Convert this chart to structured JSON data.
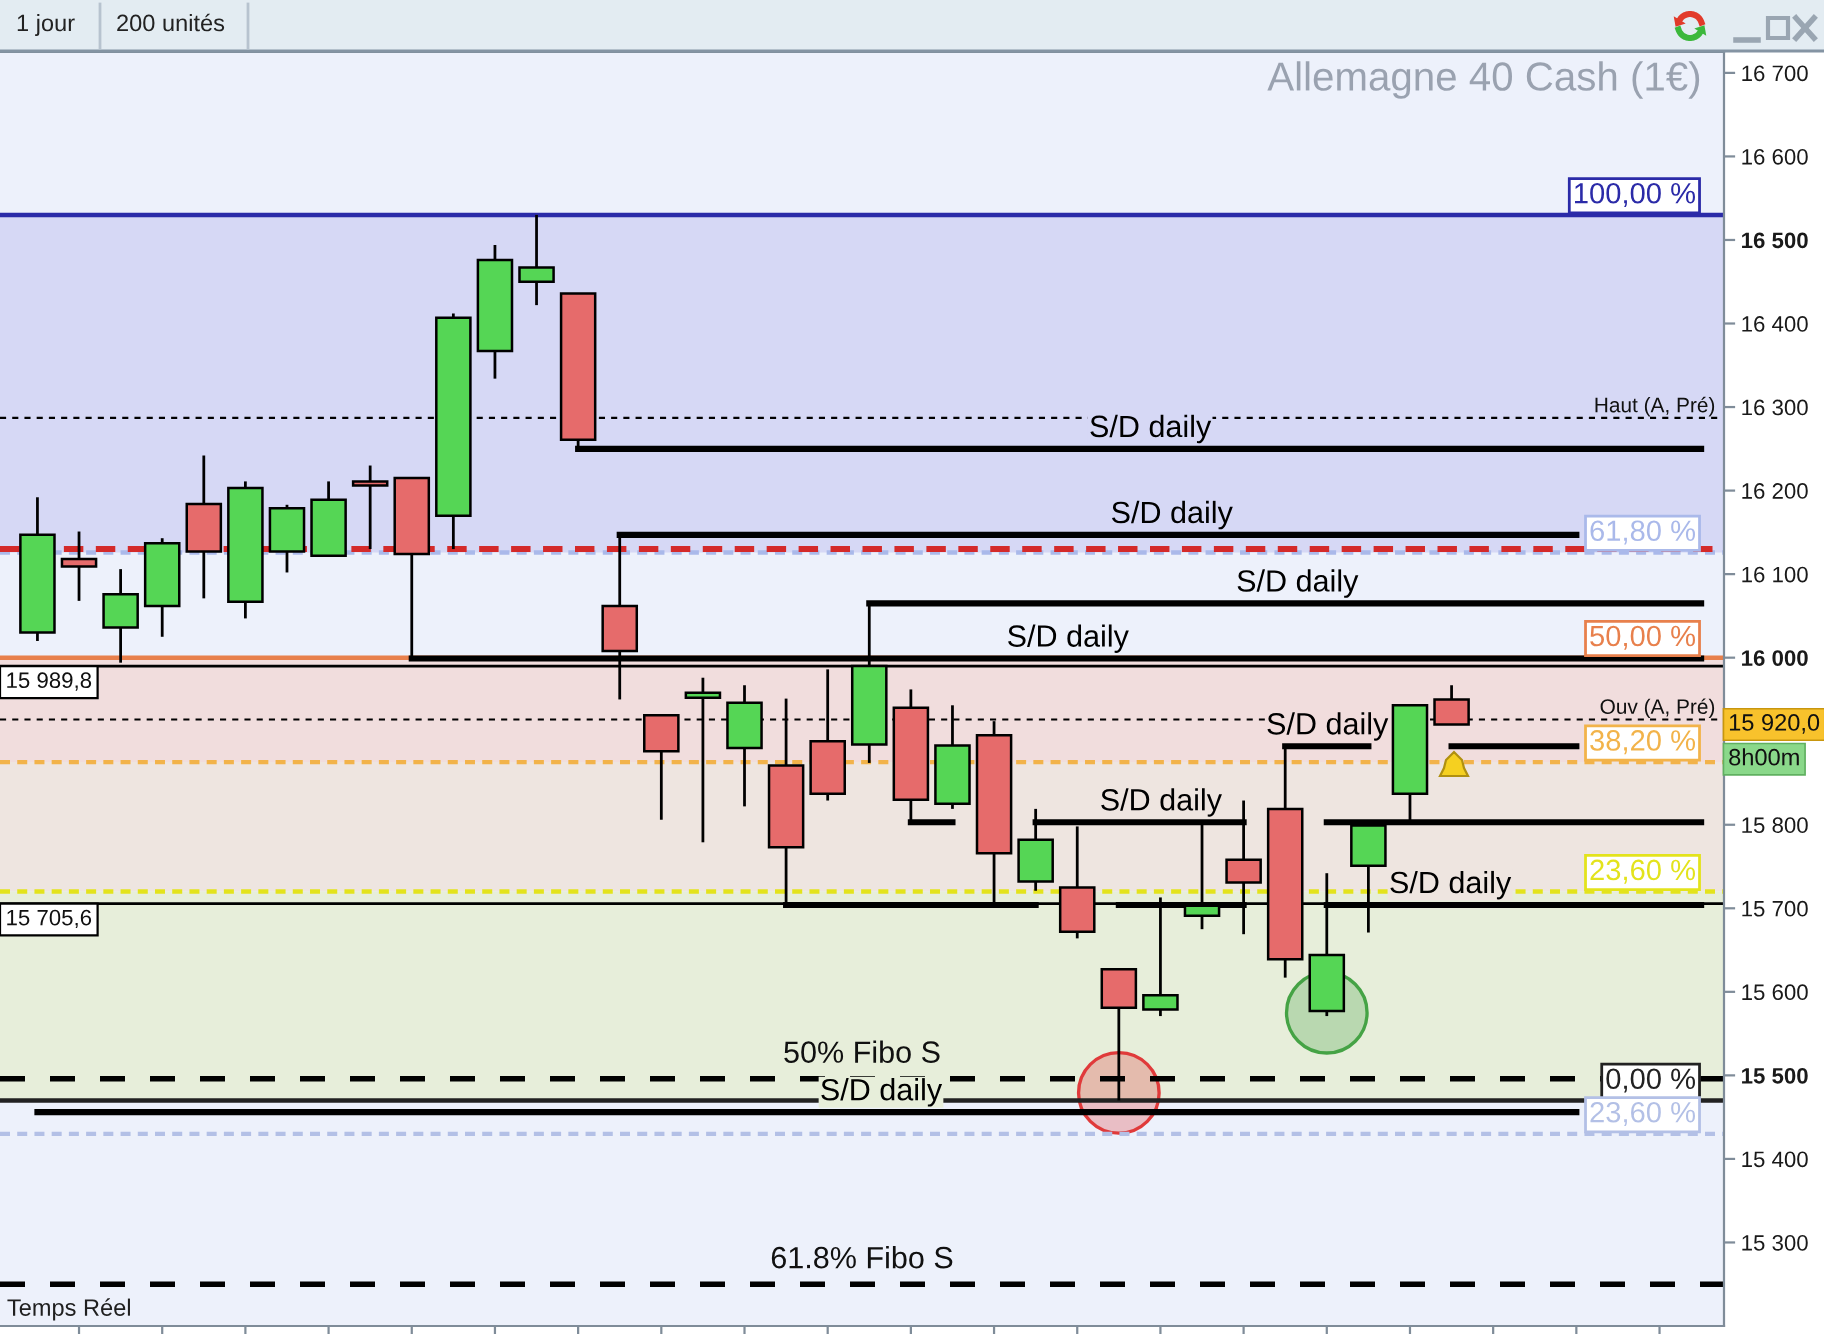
{
  "chart_data": {
    "type": "candlestick",
    "title": "Allemagne 40 Cash (1€)",
    "categories": [
      null,
      null,
      null,
      null,
      null,
      null,
      null,
      null,
      null,
      null,
      null,
      null,
      null,
      null,
      null,
      null,
      null,
      null,
      null,
      null,
      null,
      null,
      null,
      null,
      null,
      null,
      null,
      null,
      null,
      null,
      null,
      null,
      null,
      null,
      null,
      null,
      null,
      null,
      null,
      null,
      null
    ],
    "ohlc": [
      [
        16030,
        16192,
        16020,
        16147
      ],
      [
        16118,
        16151,
        16068,
        16109
      ],
      [
        16036,
        16106,
        15994,
        16076
      ],
      [
        16062,
        16143,
        16025,
        16137
      ],
      [
        16184,
        16242,
        16071,
        16127
      ],
      [
        16067,
        16211,
        16047,
        16203
      ],
      [
        16127,
        16183,
        16102,
        16179
      ],
      [
        16122,
        16211,
        16122,
        16189
      ],
      [
        16211,
        16230,
        16130,
        16206
      ],
      [
        16215,
        16215,
        15999,
        16124
      ],
      [
        16170,
        16412,
        16130,
        16407
      ],
      [
        16367,
        16494,
        16334,
        16476
      ],
      [
        16450,
        16530,
        16422,
        16467
      ],
      [
        16436,
        16436,
        16250,
        16261
      ],
      [
        16062,
        16147,
        15950,
        16008
      ],
      [
        15931,
        15931,
        15806,
        15888
      ],
      [
        15952,
        15976,
        15779,
        15958
      ],
      [
        15892,
        15967,
        15822,
        15946
      ],
      [
        15871,
        15951,
        15704,
        15773
      ],
      [
        15900,
        15986,
        15829,
        15837
      ],
      [
        15896,
        16065,
        15874,
        15990
      ],
      [
        15940,
        15962,
        15803,
        15830
      ],
      [
        15825,
        15943,
        15819,
        15895
      ],
      [
        15907,
        15924,
        15705,
        15766
      ],
      [
        15732,
        15819,
        15721,
        15782
      ],
      [
        15725,
        15798,
        15664,
        15672
      ],
      [
        15627,
        15627,
        15470,
        15581
      ],
      [
        15579,
        15713,
        15571,
        15596
      ],
      [
        15691,
        15800,
        15675,
        15703
      ],
      [
        15758,
        15829,
        15669,
        15731
      ],
      [
        15819,
        15894,
        15617,
        15639
      ],
      [
        15577,
        15742,
        15571,
        15644
      ],
      [
        15751,
        15804,
        15671,
        15799
      ],
      [
        15837,
        15944,
        15805,
        15943
      ],
      [
        15950,
        15967,
        15920,
        15920
      ],
      null,
      null,
      null,
      null,
      null,
      null
    ],
    "colors": [
      "#55d655",
      "#e66b6b",
      "#55d655",
      "#55d655",
      "#e66b6b",
      "#55d655",
      "#55d655",
      "#55d655",
      "#e66b6b",
      "#e66b6b",
      "#55d655",
      "#55d655",
      "#55d655",
      "#e66b6b",
      "#e66b6b",
      "#e66b6b",
      "#55d655",
      "#55d655",
      "#e66b6b",
      "#e66b6b",
      "#55d655",
      "#e66b6b",
      "#55d655",
      "#e66b6b",
      "#55d655",
      "#e66b6b",
      "#e66b6b",
      "#55d655",
      "#55d655",
      "#e66b6b",
      "#e66b6b",
      "#55d655",
      "#55d655",
      "#55d655",
      "#e66b6b",
      null,
      null,
      null,
      null,
      null,
      null
    ],
    "ylim": [
      15200,
      16725
    ],
    "yticks": [
      {
        "value": 15300,
        "label": "15 300"
      },
      {
        "value": 15400,
        "label": "15 400"
      },
      {
        "value": 15500,
        "label": "15 500"
      },
      {
        "value": 15600,
        "label": "15 600"
      },
      {
        "value": 15700,
        "label": "15 700"
      },
      {
        "value": 15800,
        "label": "15 800"
      },
      {
        "value": 16000,
        "label": "16 000"
      },
      {
        "value": 16100,
        "label": "16 100"
      },
      {
        "value": 16200,
        "label": "16 200"
      },
      {
        "value": 16300,
        "label": "16 300"
      },
      {
        "value": 16400,
        "label": "16 400"
      },
      {
        "value": 16500,
        "label": "16 500"
      },
      {
        "value": 16600,
        "label": "16 600"
      },
      {
        "value": 16700,
        "label": "16 700"
      }
    ],
    "tick_labels": "y",
    "bands": [
      {
        "axis": "y",
        "from": 16126,
        "to": 16530,
        "color": "#d6d8f5"
      },
      {
        "axis": "y",
        "from": 15875,
        "to": 16000,
        "color": "#f1dddd"
      },
      {
        "axis": "y",
        "from": 15720,
        "to": 15875,
        "color": "#eee5e0"
      },
      {
        "axis": "y",
        "from": 15470,
        "to": 15720,
        "color": "#e7eeda"
      }
    ],
    "ref_lines": [
      {
        "axis": "y",
        "value": 16530,
        "color": "#2b2ba8",
        "line_style": "solid"
      },
      {
        "axis": "y",
        "value": 16126,
        "color": "#aab9ea",
        "line_style": "dashed"
      },
      {
        "axis": "y",
        "value": 16000,
        "color": "#e8804c",
        "line_style": "solid"
      },
      {
        "axis": "y",
        "value": 15875,
        "color": "#f2b34a",
        "line_style": "dashed"
      },
      {
        "axis": "y",
        "value": 15720,
        "color": "#e3e31c",
        "line_style": "dashed"
      },
      {
        "axis": "y",
        "value": 15470,
        "color": "#222222",
        "line_style": "solid"
      },
      {
        "axis": "y",
        "value": 15430,
        "color": "#b3c0e6",
        "line_style": "dashed"
      },
      {
        "axis": "y",
        "value": 15989.8,
        "label": "15 989,8",
        "color": "#000000",
        "line_style": "solid"
      },
      {
        "axis": "y",
        "value": 15705.6,
        "label": "15 705,6",
        "color": "#000000",
        "line_style": "solid"
      },
      {
        "axis": "y",
        "value": 16287,
        "label": "Haut (A, Pré)",
        "color": "#000000",
        "line_style": "dashed"
      },
      {
        "axis": "y",
        "value": 15926,
        "label": "Ouv (A, Pré)",
        "color": "#000000",
        "line_style": "dashed"
      },
      {
        "axis": "y",
        "value": 15496,
        "label": "50% Fibo S",
        "color": "#000000",
        "line_style": "dashed"
      },
      {
        "axis": "y",
        "value": 15250,
        "label": "61.8% Fibo S",
        "color": "#000000",
        "line_style": "dashed"
      },
      {
        "axis": "y",
        "value": 16130,
        "color": "#d42a2a",
        "line_style": "dashed"
      }
    ],
    "series": [
      {
        "type": "line",
        "name": "S/D daily",
        "color": "#000000",
        "values": [
          null,
          null,
          null,
          null,
          null,
          null,
          null,
          null,
          null,
          null,
          null,
          null,
          null,
          16250,
          16250,
          16250,
          16250,
          16250,
          16250,
          16250,
          16250,
          16250,
          16250,
          16250,
          16250,
          16250,
          16250,
          16250,
          16250,
          16250,
          16250,
          16250,
          16250,
          16250,
          16250,
          16250,
          16250,
          16250,
          16250,
          16250,
          16250
        ]
      },
      {
        "type": "line",
        "name": "S/D daily",
        "color": "#000000",
        "values": [
          null,
          null,
          null,
          null,
          null,
          null,
          null,
          null,
          null,
          null,
          null,
          null,
          null,
          null,
          16147,
          16147,
          16147,
          16147,
          16147,
          16147,
          16147,
          16147,
          16147,
          16147,
          16147,
          16147,
          16147,
          16147,
          16147,
          16147,
          16147,
          16147,
          16147,
          16147,
          16147,
          16147,
          16147,
          16147,
          null,
          null,
          null
        ]
      },
      {
        "type": "line",
        "name": "S/D daily",
        "color": "#000000",
        "values": [
          null,
          null,
          null,
          null,
          null,
          null,
          null,
          null,
          null,
          null,
          null,
          null,
          null,
          null,
          null,
          null,
          null,
          null,
          null,
          null,
          16065,
          16065,
          16065,
          16065,
          16065,
          16065,
          16065,
          16065,
          16065,
          16065,
          16065,
          16065,
          16065,
          16065,
          16065,
          16065,
          16065,
          16065,
          16065,
          16065,
          16065
        ]
      },
      {
        "type": "line",
        "name": "S/D daily",
        "color": "#000000",
        "values": [
          null,
          null,
          null,
          null,
          null,
          null,
          null,
          null,
          null,
          15999,
          15999,
          15999,
          15999,
          15999,
          15999,
          15999,
          15999,
          15999,
          15999,
          15999,
          15999,
          15999,
          15999,
          15999,
          15999,
          15999,
          15999,
          15999,
          15999,
          15999,
          15999,
          15999,
          15999,
          15999,
          15999,
          15999,
          15999,
          15999,
          15999,
          15999,
          15999
        ]
      },
      {
        "type": "line",
        "name": "S/D daily",
        "color": "#000000",
        "values": [
          null,
          null,
          null,
          null,
          null,
          null,
          null,
          null,
          null,
          null,
          null,
          null,
          null,
          null,
          null,
          null,
          null,
          null,
          null,
          null,
          null,
          null,
          null,
          null,
          null,
          null,
          null,
          null,
          null,
          null,
          15894,
          15894,
          15894,
          null,
          15894,
          15894,
          15894,
          15894,
          null,
          null,
          null
        ]
      },
      {
        "type": "line",
        "name": "S/D daily",
        "color": "#000000",
        "values": [
          null,
          null,
          null,
          null,
          null,
          null,
          null,
          null,
          null,
          null,
          null,
          null,
          null,
          null,
          null,
          null,
          null,
          null,
          null,
          null,
          null,
          15803,
          15803,
          null,
          15803,
          15803,
          15803,
          15803,
          15803,
          15803,
          null,
          15803,
          15803,
          15803,
          15803,
          15803,
          15803,
          15803,
          15803,
          15803,
          15803
        ]
      },
      {
        "type": "line",
        "name": "S/D daily",
        "color": "#000000",
        "values": [
          null,
          null,
          null,
          null,
          null,
          null,
          null,
          null,
          null,
          null,
          null,
          null,
          null,
          null,
          null,
          null,
          null,
          null,
          15704,
          15704,
          15704,
          15704,
          15704,
          15704,
          15704,
          null,
          15704,
          15704,
          15704,
          15704,
          null,
          15704,
          15704,
          15704,
          15704,
          15704,
          15704,
          15704,
          15704,
          15704,
          15704
        ]
      },
      {
        "type": "line",
        "name": "S/D daily",
        "color": "#000000",
        "values": [
          15456,
          15456,
          15456,
          15456,
          15456,
          15456,
          15456,
          15456,
          15456,
          15456,
          15456,
          15456,
          15456,
          15456,
          15456,
          15456,
          15456,
          15456,
          15456,
          15456,
          15456,
          15456,
          15456,
          15456,
          15456,
          15456,
          15456,
          15456,
          15456,
          15456,
          15456,
          15456,
          15456,
          15456,
          15456,
          15456,
          15456,
          15456,
          null,
          null,
          null
        ]
      },
      {
        "type": "scatter",
        "marker": "circle",
        "color": "#e03a3a",
        "values": [
          null,
          null,
          null,
          null,
          null,
          null,
          null,
          null,
          null,
          null,
          null,
          null,
          null,
          null,
          null,
          null,
          null,
          null,
          null,
          null,
          null,
          null,
          null,
          null,
          null,
          null,
          15479,
          null,
          null,
          null,
          null,
          null,
          null,
          null,
          null,
          null,
          null,
          null,
          null,
          null,
          null
        ]
      },
      {
        "type": "scatter",
        "marker": "circle",
        "color": "#45a345",
        "values": [
          null,
          null,
          null,
          null,
          null,
          null,
          null,
          null,
          null,
          null,
          null,
          null,
          null,
          null,
          null,
          null,
          null,
          null,
          null,
          null,
          null,
          null,
          null,
          null,
          null,
          null,
          null,
          null,
          null,
          null,
          null,
          15575,
          null,
          null,
          null,
          null,
          null,
          null,
          null,
          null,
          null
        ]
      }
    ],
    "annotations": [
      {
        "text": "100,00 %",
        "y": 16530
      },
      {
        "text": "61,80 %",
        "y": 16126
      },
      {
        "text": "50,00 %",
        "y": 16000
      },
      {
        "text": "38,20 %",
        "y": 15875
      },
      {
        "text": "23,60 %",
        "y": 15720
      },
      {
        "text": "0,00 %",
        "y": 15470
      },
      {
        "text": "23,60 %",
        "y": 15430
      },
      "15 920,0",
      "8h00m",
      "1 jour",
      "200 unités",
      "Temps Réel"
    ]
  }
}
